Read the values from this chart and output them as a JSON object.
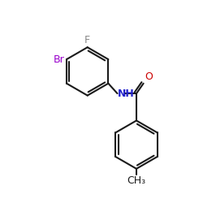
{
  "background_color": "#ffffff",
  "bond_color": "#1a1a1a",
  "F_color": "#888888",
  "Br_color": "#9900cc",
  "NH_color": "#2222cc",
  "O_color": "#cc0000",
  "CH3_color": "#1a1a1a",
  "figsize": [
    2.5,
    2.5
  ],
  "dpi": 100,
  "xlim": [
    0,
    10
  ],
  "ylim": [
    0,
    10
  ]
}
